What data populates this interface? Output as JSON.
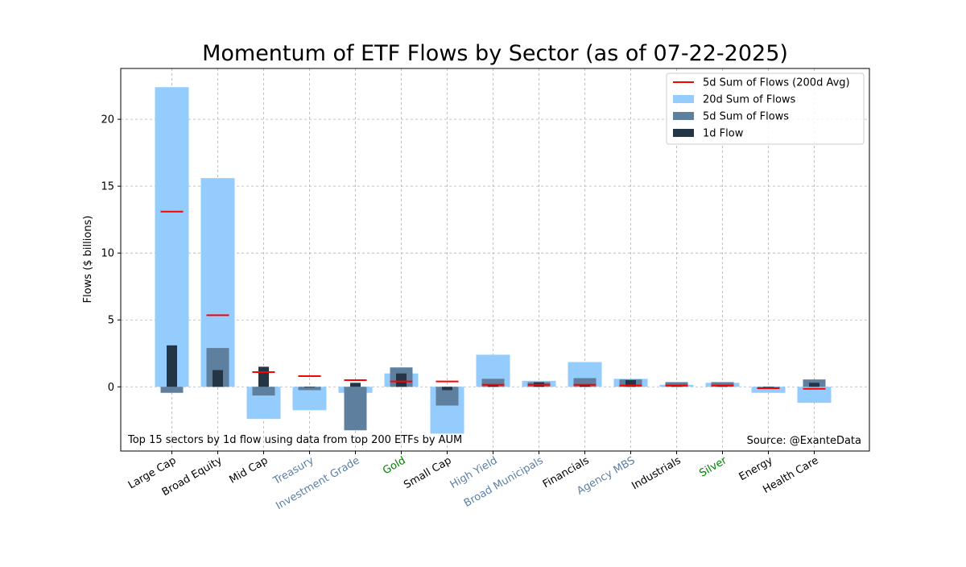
{
  "chart_data": {
    "type": "bar",
    "title": "Momentum of ETF Flows by Sector (as of 07-22-2025)",
    "ylabel": "Flows ($ billions)",
    "xlabel": "",
    "ylim": [
      -4.8,
      23.8
    ],
    "yticks": [
      0,
      5,
      10,
      15,
      20
    ],
    "grid": true,
    "legend_position": "top-right",
    "annotation_left": "Top 15 sectors by 1d flow using data from top 200 ETFs by AUM",
    "annotation_right": "Source: @ExanteData",
    "categories": [
      "Large Cap",
      "Broad Equity",
      "Mid Cap",
      "Treasury",
      "Investment Grade",
      "Gold",
      "Small Cap",
      "High Yield",
      "Broad Municipals",
      "Financials",
      "Agency MBS",
      "Industrials",
      "Silver",
      "Energy",
      "Health Care"
    ],
    "category_colors": [
      "#000000",
      "#000000",
      "#000000",
      "#5b7fa3",
      "#5b7fa3",
      "#008000",
      "#000000",
      "#5b7fa3",
      "#5b7fa3",
      "#000000",
      "#5b7fa3",
      "#000000",
      "#008000",
      "#000000",
      "#000000"
    ],
    "series": [
      {
        "name": "20d Sum of Flows",
        "color": "#94cdfd",
        "values": [
          22.4,
          15.6,
          -2.4,
          -1.75,
          -0.45,
          1.0,
          -3.5,
          2.4,
          0.45,
          1.85,
          0.6,
          0.15,
          0.3,
          -0.45,
          -1.2
        ]
      },
      {
        "name": "5d Sum of Flows",
        "color": "#5e7f9e",
        "values": [
          -0.45,
          2.9,
          -0.65,
          -0.25,
          -3.25,
          1.45,
          -1.4,
          0.6,
          0.35,
          0.65,
          0.55,
          0.35,
          0.35,
          -0.1,
          0.55
        ]
      },
      {
        "name": "1d Flow",
        "color": "#243545",
        "values": [
          3.1,
          1.25,
          1.5,
          -0.05,
          0.3,
          1.0,
          -0.25,
          0.2,
          0.35,
          0.15,
          0.5,
          0.05,
          0.1,
          -0.05,
          0.3
        ]
      },
      {
        "name": "5d Sum of Flows (200d Avg)",
        "color": "#ff0000",
        "values": [
          13.1,
          5.35,
          1.1,
          0.8,
          0.5,
          0.4,
          0.4,
          0.15,
          0.15,
          0.15,
          0.1,
          0.1,
          0.1,
          -0.1,
          -0.15
        ]
      }
    ],
    "legend_order": [
      "5d Sum of Flows (200d Avg)",
      "20d Sum of Flows",
      "5d Sum of Flows",
      "1d Flow"
    ]
  }
}
